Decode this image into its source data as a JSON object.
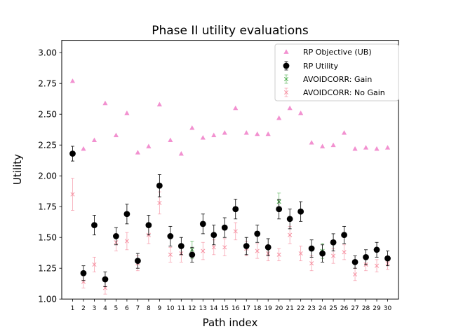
{
  "chart_data": {
    "type": "scatter",
    "title": "Phase II utility evaluations",
    "xlabel": "Path index",
    "ylabel": "Utility",
    "ylim": [
      1.0,
      3.1
    ],
    "xlim": [
      0,
      31
    ],
    "yticks": [
      "1.00",
      "1.25",
      "1.50",
      "1.75",
      "2.00",
      "2.25",
      "2.50",
      "2.75",
      "3.00"
    ],
    "x": [
      1,
      2,
      3,
      4,
      5,
      6,
      7,
      8,
      9,
      10,
      11,
      12,
      13,
      14,
      15,
      16,
      17,
      18,
      19,
      20,
      21,
      22,
      23,
      24,
      25,
      26,
      27,
      28,
      29,
      30
    ],
    "grid": false,
    "legend_position": "top-right",
    "series": [
      {
        "name": "RP Objective (UB)",
        "marker": "triangle",
        "color": "#f07ec8",
        "values": [
          2.77,
          2.22,
          2.29,
          2.59,
          2.33,
          2.51,
          2.19,
          2.24,
          2.58,
          2.29,
          2.18,
          2.39,
          2.31,
          2.33,
          2.35,
          2.55,
          2.35,
          2.34,
          2.34,
          2.47,
          2.55,
          2.51,
          2.27,
          2.24,
          2.25,
          2.35,
          2.22,
          2.23,
          2.22,
          2.23
        ]
      },
      {
        "name": "RP Utility",
        "marker": "circle",
        "color": "#000000",
        "values": [
          2.18,
          1.21,
          1.6,
          1.16,
          1.51,
          1.69,
          1.31,
          1.6,
          1.92,
          1.51,
          1.43,
          1.36,
          1.61,
          1.52,
          1.58,
          1.73,
          1.43,
          1.53,
          1.42,
          1.73,
          1.65,
          1.71,
          1.41,
          1.37,
          1.46,
          1.52,
          1.3,
          1.34,
          1.4,
          1.33
        ],
        "errors": [
          0.06,
          0.06,
          0.08,
          0.06,
          0.07,
          0.08,
          0.06,
          0.08,
          0.09,
          0.08,
          0.07,
          0.06,
          0.08,
          0.08,
          0.08,
          0.08,
          0.07,
          0.07,
          0.07,
          0.08,
          0.08,
          0.08,
          0.07,
          0.07,
          0.07,
          0.07,
          0.05,
          0.06,
          0.06,
          0.06
        ]
      },
      {
        "name": "AVOIDCORR: Gain",
        "marker": "x",
        "color": "#2ca02c",
        "x": [
          12,
          20,
          24
        ],
        "values": [
          1.4,
          1.79,
          1.39
        ],
        "errors": [
          0.07,
          0.07,
          0.06
        ]
      },
      {
        "name": "AVOIDCORR: No Gain",
        "marker": "x",
        "color": "#f5889a",
        "x": [
          1,
          2,
          3,
          4,
          5,
          6,
          7,
          8,
          9,
          10,
          11,
          13,
          14,
          15,
          16,
          17,
          18,
          19,
          20,
          21,
          22,
          23,
          25,
          26,
          27,
          28,
          29,
          30
        ],
        "values": [
          1.85,
          1.14,
          1.28,
          1.09,
          1.46,
          1.47,
          1.29,
          1.52,
          1.78,
          1.36,
          1.37,
          1.39,
          1.42,
          1.42,
          1.55,
          1.41,
          1.39,
          1.37,
          1.36,
          1.52,
          1.37,
          1.29,
          1.35,
          1.38,
          1.2,
          1.28,
          1.27,
          1.29
        ],
        "errors": [
          0.13,
          0.05,
          0.06,
          0.05,
          0.07,
          0.07,
          0.06,
          0.07,
          0.09,
          0.06,
          0.07,
          0.07,
          0.06,
          0.07,
          0.07,
          0.06,
          0.06,
          0.06,
          0.05,
          0.07,
          0.06,
          0.06,
          0.06,
          0.06,
          0.05,
          0.05,
          0.05,
          0.05
        ]
      }
    ]
  }
}
